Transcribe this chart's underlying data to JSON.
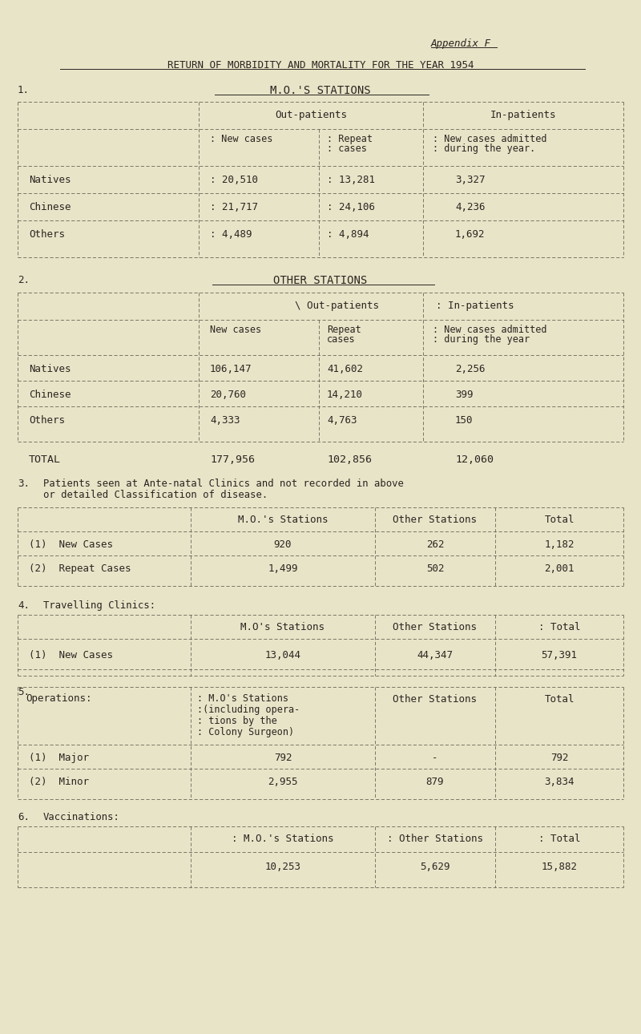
{
  "bg_color": "#e8e4c8",
  "text_color": "#2a2520",
  "line_color": "#666655",
  "appendix": "Appendix F",
  "title": "RETURN OF MORBIDITY AND MORTALITY FOR THE YEAR 1954",
  "s1_num": "1.",
  "s1_header": "M.O.'S STATIONS",
  "s1_rows": [
    [
      "Natives",
      "20,510",
      "13,281",
      "3,327"
    ],
    [
      "Chinese",
      "21,717",
      "24,106",
      "4,236"
    ],
    [
      "Others",
      "4,489",
      "4,894",
      "1,692"
    ]
  ],
  "s2_num": "2.",
  "s2_header": "OTHER STATIONS",
  "s2_rows": [
    [
      "Natives",
      "106,147",
      "41,602",
      "2,256"
    ],
    [
      "Chinese",
      "20,760",
      "14,210",
      "399"
    ],
    [
      "Others",
      "4,333",
      "4,763",
      "150"
    ]
  ],
  "total_row": [
    "TOTAL",
    "177,956",
    "102,856",
    "12,060"
  ],
  "s3_num": "3.",
  "s3_text1": "Patients seen at Ante-natal Clinics and not recorded in above",
  "s3_text2": "or detailed Classification of disease.",
  "s3_rows": [
    [
      "(1)  New Cases",
      "920",
      "262",
      "1,182"
    ],
    [
      "(2)  Repeat Cases",
      "1,499",
      "502",
      "2,001"
    ]
  ],
  "s4_num": "4.",
  "s4_text": "Travelling Clinics:",
  "s4_rows": [
    [
      "(1)  New Cases",
      "13,044",
      "44,347",
      "57,391"
    ]
  ],
  "s5_num": "5.",
  "s5_text": "Operations:",
  "s5_hdr_lines": [
    ": M.O's Stations",
    ":(including opera-",
    ": tions by the",
    ": Colony Surgeon)"
  ],
  "s5_rows": [
    [
      "(1)  Major",
      "792",
      "-",
      "792"
    ],
    [
      "(2)  Minor",
      "2,955",
      "879",
      "3,834"
    ]
  ],
  "s6_num": "6.",
  "s6_text": "Vaccinations:",
  "s6_rows": [
    [
      "",
      "10,253",
      "5,629",
      "15,882"
    ]
  ]
}
